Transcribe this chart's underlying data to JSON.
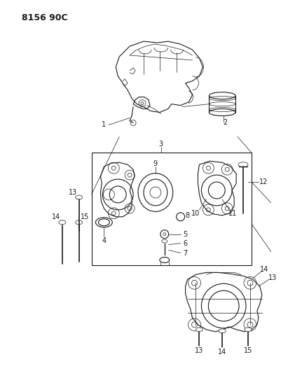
{
  "title": "8156 90C",
  "bg_color": "#ffffff",
  "line_color": "#1a1a1a",
  "title_fontsize": 9,
  "fig_w": 4.11,
  "fig_h": 5.33,
  "dpi": 100
}
